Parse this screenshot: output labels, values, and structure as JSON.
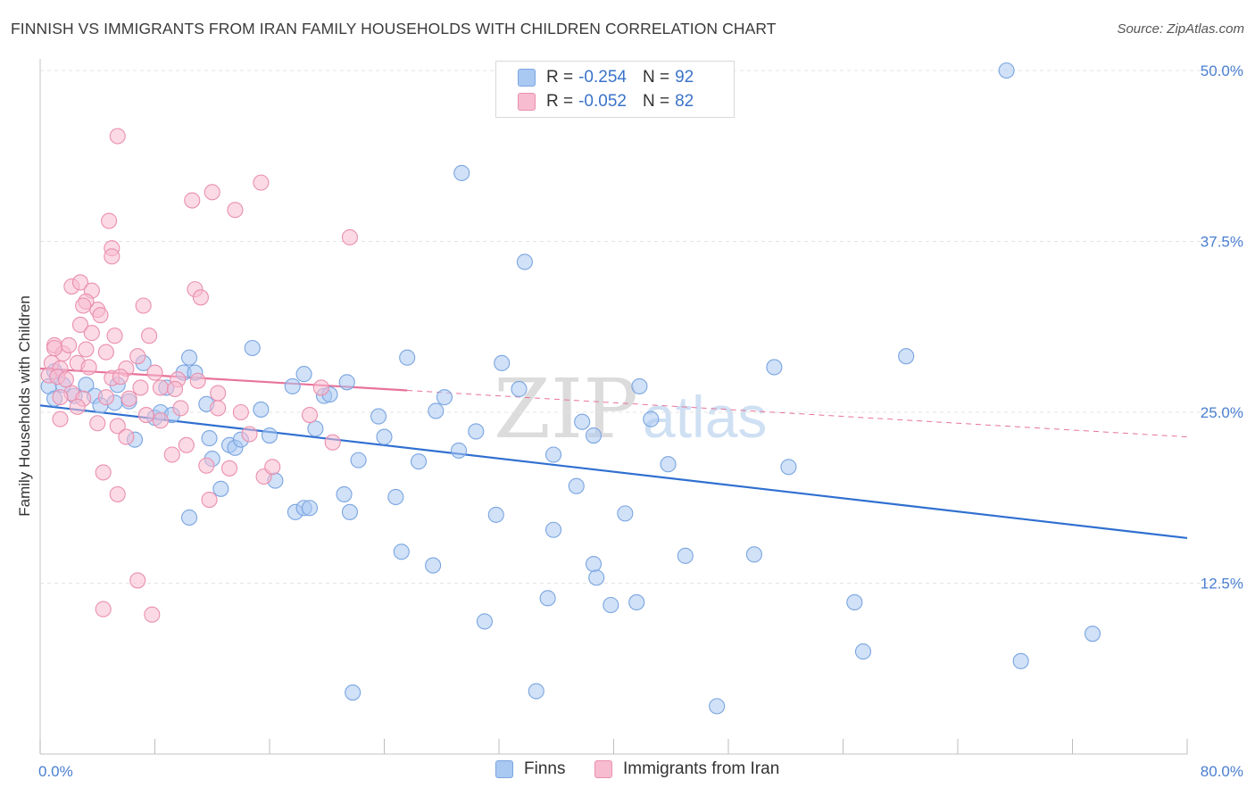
{
  "title": "FINNISH VS IMMIGRANTS FROM IRAN FAMILY HOUSEHOLDS WITH CHILDREN CORRELATION CHART",
  "source": "Source: ZipAtlas.com",
  "watermark": {
    "zip": "ZIP",
    "atlas": "atlas"
  },
  "legend": {
    "rows": [
      {
        "r_label": "R =",
        "r_value": "-0.254",
        "n_label": "N =",
        "n_value": "92",
        "color": "#a9c8f2",
        "border": "#7aa5e0"
      },
      {
        "r_label": "R =",
        "r_value": "-0.052",
        "n_label": "N =",
        "n_value": "82",
        "color": "#f7bccf",
        "border": "#ea8fae"
      }
    ]
  },
  "bottom_legend": [
    "Finns",
    "Immigrants from Iran"
  ],
  "chart_data": {
    "type": "scatter",
    "xlabel": "",
    "ylabel": "Family Households with Children",
    "xlim": [
      0,
      80
    ],
    "ylim": [
      0,
      50
    ],
    "x_tick_labels": [
      "0.0%",
      "80.0%"
    ],
    "y_ticks": [
      12.5,
      25.0,
      37.5,
      50.0
    ],
    "y_tick_labels": [
      "12.5%",
      "25.0%",
      "37.5%",
      "50.0%"
    ],
    "grid": "horizontal dashed",
    "legend_position": "top-center",
    "series": [
      {
        "name": "Finns",
        "color": "#7aa5e0",
        "fill": "#a9c8f2",
        "trend": {
          "x0": 0,
          "y0": 25.5,
          "x1": 80,
          "y1": 15.8,
          "dashed_from": null
        },
        "points": [
          [
            67.4,
            50.0
          ],
          [
            29.4,
            42.5
          ],
          [
            33.8,
            36.0
          ],
          [
            0.6,
            26.9
          ],
          [
            1.0,
            28.0
          ],
          [
            1.6,
            27.0
          ],
          [
            3.2,
            27.0
          ],
          [
            2.4,
            26.2
          ],
          [
            1.0,
            26.0
          ],
          [
            3.8,
            26.2
          ],
          [
            4.2,
            25.5
          ],
          [
            5.2,
            25.7
          ],
          [
            6.2,
            25.8
          ],
          [
            5.4,
            27.0
          ],
          [
            6.6,
            23.0
          ],
          [
            7.2,
            28.6
          ],
          [
            8.0,
            24.6
          ],
          [
            8.4,
            25.0
          ],
          [
            8.8,
            26.8
          ],
          [
            9.2,
            24.8
          ],
          [
            10.0,
            27.9
          ],
          [
            10.4,
            17.3
          ],
          [
            10.4,
            29.0
          ],
          [
            10.8,
            27.9
          ],
          [
            11.6,
            25.6
          ],
          [
            11.8,
            23.1
          ],
          [
            12.0,
            21.6
          ],
          [
            12.6,
            19.4
          ],
          [
            13.2,
            22.6
          ],
          [
            13.6,
            22.4
          ],
          [
            14.0,
            23.0
          ],
          [
            14.8,
            29.7
          ],
          [
            15.4,
            25.2
          ],
          [
            16.0,
            23.3
          ],
          [
            16.4,
            20.0
          ],
          [
            17.6,
            26.9
          ],
          [
            17.8,
            17.7
          ],
          [
            18.4,
            18.0
          ],
          [
            18.8,
            18.0
          ],
          [
            18.4,
            27.8
          ],
          [
            19.2,
            23.8
          ],
          [
            19.8,
            26.2
          ],
          [
            20.2,
            26.3
          ],
          [
            21.2,
            19.0
          ],
          [
            21.4,
            27.2
          ],
          [
            21.6,
            17.7
          ],
          [
            21.8,
            4.5
          ],
          [
            22.2,
            21.5
          ],
          [
            23.6,
            24.7
          ],
          [
            24.0,
            23.2
          ],
          [
            24.8,
            18.8
          ],
          [
            25.2,
            14.8
          ],
          [
            25.6,
            29.0
          ],
          [
            26.4,
            21.4
          ],
          [
            27.4,
            13.8
          ],
          [
            27.6,
            25.1
          ],
          [
            28.2,
            26.1
          ],
          [
            29.2,
            22.2
          ],
          [
            30.4,
            23.6
          ],
          [
            31.0,
            9.7
          ],
          [
            31.8,
            17.5
          ],
          [
            32.2,
            28.6
          ],
          [
            33.4,
            26.7
          ],
          [
            34.6,
            4.6
          ],
          [
            35.4,
            11.4
          ],
          [
            35.8,
            21.9
          ],
          [
            35.8,
            16.4
          ],
          [
            37.4,
            19.6
          ],
          [
            37.8,
            24.3
          ],
          [
            38.6,
            23.3
          ],
          [
            38.6,
            13.9
          ],
          [
            38.8,
            12.9
          ],
          [
            39.8,
            10.9
          ],
          [
            40.8,
            17.6
          ],
          [
            41.6,
            11.1
          ],
          [
            41.8,
            26.9
          ],
          [
            42.6,
            24.5
          ],
          [
            43.8,
            21.2
          ],
          [
            45.0,
            14.5
          ],
          [
            47.2,
            3.5
          ],
          [
            49.8,
            14.6
          ],
          [
            51.2,
            28.3
          ],
          [
            52.2,
            21.0
          ],
          [
            56.8,
            11.1
          ],
          [
            57.4,
            7.5
          ],
          [
            60.4,
            29.1
          ],
          [
            68.4,
            6.8
          ],
          [
            73.4,
            8.8
          ]
        ]
      },
      {
        "name": "Immigrants from Iran",
        "color": "#ea8fae",
        "fill": "#f7bccf",
        "trend": {
          "x0": 0,
          "y0": 28.2,
          "x1": 80,
          "y1": 23.2,
          "solid_until": 25.6
        },
        "points": [
          [
            5.4,
            45.2
          ],
          [
            10.6,
            40.5
          ],
          [
            12.0,
            41.1
          ],
          [
            13.6,
            39.8
          ],
          [
            15.4,
            41.8
          ],
          [
            4.8,
            39.0
          ],
          [
            5.0,
            37.0
          ],
          [
            5.0,
            36.4
          ],
          [
            21.6,
            37.8
          ],
          [
            1.0,
            29.9
          ],
          [
            1.6,
            29.3
          ],
          [
            2.2,
            34.2
          ],
          [
            2.8,
            34.5
          ],
          [
            3.6,
            33.9
          ],
          [
            4.0,
            32.5
          ],
          [
            3.2,
            33.1
          ],
          [
            3.0,
            32.8
          ],
          [
            4.2,
            32.1
          ],
          [
            2.8,
            31.4
          ],
          [
            3.6,
            30.8
          ],
          [
            5.2,
            30.6
          ],
          [
            1.0,
            29.7
          ],
          [
            2.0,
            29.9
          ],
          [
            3.2,
            29.6
          ],
          [
            4.6,
            29.4
          ],
          [
            6.8,
            29.1
          ],
          [
            0.8,
            28.6
          ],
          [
            2.6,
            28.6
          ],
          [
            1.4,
            28.2
          ],
          [
            3.4,
            28.3
          ],
          [
            6.0,
            28.2
          ],
          [
            0.6,
            27.7
          ],
          [
            1.2,
            27.6
          ],
          [
            1.8,
            27.4
          ],
          [
            5.0,
            27.5
          ],
          [
            5.6,
            27.6
          ],
          [
            7.0,
            26.8
          ],
          [
            8.4,
            26.8
          ],
          [
            9.6,
            27.4
          ],
          [
            9.4,
            26.7
          ],
          [
            11.0,
            27.3
          ],
          [
            2.2,
            26.4
          ],
          [
            3.0,
            26.0
          ],
          [
            4.6,
            26.1
          ],
          [
            6.2,
            26.0
          ],
          [
            1.4,
            26.1
          ],
          [
            2.6,
            25.4
          ],
          [
            4.0,
            24.2
          ],
          [
            5.4,
            24.0
          ],
          [
            6.0,
            23.2
          ],
          [
            7.4,
            24.8
          ],
          [
            8.4,
            24.4
          ],
          [
            9.2,
            21.9
          ],
          [
            9.8,
            25.3
          ],
          [
            10.2,
            22.6
          ],
          [
            11.6,
            21.1
          ],
          [
            12.4,
            25.3
          ],
          [
            13.2,
            20.9
          ],
          [
            14.0,
            25.0
          ],
          [
            14.6,
            23.4
          ],
          [
            15.6,
            20.3
          ],
          [
            16.2,
            21.0
          ],
          [
            18.8,
            24.8
          ],
          [
            20.4,
            22.8
          ],
          [
            1.4,
            24.5
          ],
          [
            4.4,
            20.6
          ],
          [
            5.4,
            19.0
          ],
          [
            11.8,
            18.6
          ],
          [
            6.8,
            12.7
          ],
          [
            4.4,
            10.6
          ],
          [
            7.8,
            10.2
          ],
          [
            7.2,
            32.8
          ],
          [
            7.6,
            30.6
          ],
          [
            10.8,
            34.0
          ],
          [
            11.2,
            33.4
          ],
          [
            8.0,
            27.9
          ],
          [
            19.6,
            26.8
          ],
          [
            12.4,
            26.4
          ]
        ]
      }
    ]
  }
}
